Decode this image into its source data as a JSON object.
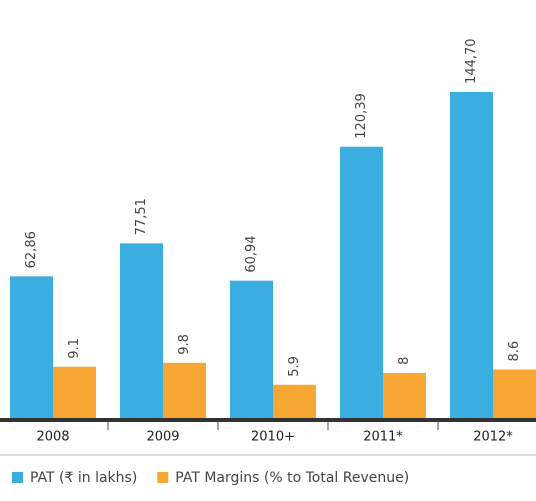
{
  "chart_data": {
    "type": "bar",
    "categories": [
      "2008",
      "2009",
      "2010+",
      "2011*",
      "2012*"
    ],
    "series": [
      {
        "name": "PAT (₹ in lakhs)",
        "color": "#3aaee0",
        "values": [
          62.86,
          77.51,
          60.94,
          120.39,
          144.7
        ],
        "value_labels": [
          "62,86",
          "77,51",
          "60,94",
          "120,39",
          "144,70"
        ]
      },
      {
        "name": "PAT Margins (% to Total Revenue)",
        "color": "#f7a733",
        "axis": "y2",
        "values": [
          9.1,
          9.8,
          5.9,
          8.0,
          8.6
        ]
      }
    ],
    "ylim": [
      0,
      150
    ],
    "y2lim": [
      0,
      60
    ]
  }
}
